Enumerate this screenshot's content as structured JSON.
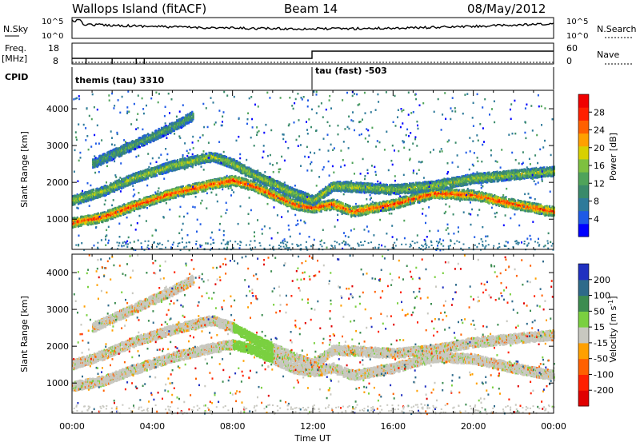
{
  "header": {
    "station": "Wallops Island (fitACF)",
    "beam": "Beam 14",
    "date": "08/May/2012"
  },
  "summary_panels": {
    "nsky": {
      "label": "N.Sky",
      "ticks": [
        "10^5",
        "10^0"
      ]
    },
    "nsearch": {
      "label": "N.Search",
      "ticks": [
        "10^5",
        "10^0"
      ]
    },
    "freq": {
      "label_line1": "Freq.",
      "label_line2": "[MHz]",
      "ticks": [
        "18",
        "8"
      ]
    },
    "nave": {
      "label": "Nave",
      "ticks": [
        "60",
        "0"
      ]
    },
    "cpid": {
      "label": "CPID"
    },
    "modes": [
      {
        "name": "themis (tau) 3310",
        "start_hour": 0
      },
      {
        "name": "tau (fast) -503",
        "start_hour": 12
      }
    ]
  },
  "chart_data": [
    {
      "type": "heatmap",
      "panel": "power",
      "ylabel": "Slant Range [km]",
      "xlabel": "Time UT",
      "x_ticks": [
        "00:00",
        "04:00",
        "08:00",
        "12:00",
        "16:00",
        "20:00",
        "00:00"
      ],
      "x_range_hours": [
        0,
        24
      ],
      "y_ticks": [
        1000,
        2000,
        3000,
        4000
      ],
      "ylim": [
        180,
        4500
      ],
      "colorbar": {
        "label": "Power [dB]",
        "ticks": [
          4,
          8,
          12,
          16,
          20,
          24,
          28
        ],
        "colors": [
          "#0000ff",
          "#1e5ae6",
          "#2e7a9a",
          "#3a8a6a",
          "#4fa35a",
          "#7ec040",
          "#d8d000",
          "#ffa000",
          "#ff6000",
          "#ff2000",
          "#f00000"
        ]
      },
      "bands": [
        {
          "points": [
            [
              0,
              900
            ],
            [
              1.5,
              1050
            ],
            [
              3,
              1350
            ],
            [
              5,
              1700
            ],
            [
              7,
              1950
            ],
            [
              8,
              2050
            ],
            [
              9,
              1900
            ],
            [
              10,
              1650
            ],
            [
              11,
              1400
            ],
            [
              12,
              1300
            ],
            [
              13,
              1400
            ],
            [
              14,
              1200
            ],
            [
              16,
              1400
            ],
            [
              18,
              1700
            ],
            [
              20,
              1650
            ],
            [
              22,
              1400
            ],
            [
              24,
              1200
            ]
          ],
          "level": 0.9
        },
        {
          "points": [
            [
              0,
              1500
            ],
            [
              1.5,
              1750
            ],
            [
              3,
              2100
            ],
            [
              5,
              2450
            ],
            [
              7,
              2700
            ],
            [
              8,
              2500
            ],
            [
              9,
              2200
            ],
            [
              10,
              1950
            ],
            [
              11,
              1700
            ],
            [
              12,
              1500
            ],
            [
              13,
              1900
            ],
            [
              16,
              1800
            ],
            [
              18,
              1900
            ],
            [
              20,
              2100
            ],
            [
              22,
              2200
            ],
            [
              24,
              2300
            ]
          ],
          "level": 0.55
        },
        {
          "points": [
            [
              1,
              2500
            ],
            [
              3,
              3000
            ],
            [
              5,
              3500
            ],
            [
              6,
              3800
            ]
          ],
          "level": 0.4
        }
      ]
    },
    {
      "type": "heatmap",
      "panel": "velocity",
      "ylabel": "Slant Range [km]",
      "xlabel": "Time UT",
      "x_ticks": [
        "00:00",
        "04:00",
        "08:00",
        "12:00",
        "16:00",
        "20:00",
        "00:00"
      ],
      "x_range_hours": [
        0,
        24
      ],
      "y_ticks": [
        1000,
        2000,
        3000,
        4000
      ],
      "ylim": [
        180,
        4500
      ],
      "colorbar": {
        "label": "Velocity [m s^-1]",
        "ticks": [
          200,
          100,
          50,
          15,
          -15,
          -50,
          -100,
          -200
        ],
        "colors": [
          "#2030c0",
          "#2e6a8a",
          "#3c8c50",
          "#7ad040",
          "#c8c8c0",
          "#ffa000",
          "#ff6000",
          "#ff2000",
          "#e00000"
        ]
      },
      "bands": [
        {
          "points": [
            [
              0,
              900
            ],
            [
              1.5,
              1050
            ],
            [
              3,
              1350
            ],
            [
              5,
              1700
            ],
            [
              7,
              1950
            ],
            [
              8,
              2050
            ],
            [
              9,
              1900
            ],
            [
              10,
              1650
            ],
            [
              11,
              1400
            ],
            [
              12,
              1300
            ],
            [
              13,
              1400
            ],
            [
              14,
              1200
            ],
            [
              16,
              1400
            ],
            [
              18,
              1700
            ],
            [
              20,
              1650
            ],
            [
              22,
              1400
            ],
            [
              24,
              1200
            ]
          ],
          "level": 0.5
        },
        {
          "points": [
            [
              0,
              1500
            ],
            [
              1.5,
              1750
            ],
            [
              3,
              2100
            ],
            [
              5,
              2450
            ],
            [
              7,
              2700
            ],
            [
              8,
              2500
            ],
            [
              9,
              2200
            ],
            [
              10,
              1950
            ],
            [
              11,
              1700
            ],
            [
              12,
              1500
            ],
            [
              13,
              1900
            ],
            [
              16,
              1800
            ],
            [
              18,
              1900
            ],
            [
              20,
              2100
            ],
            [
              22,
              2200
            ],
            [
              24,
              2300
            ]
          ],
          "level": 0.5
        },
        {
          "points": [
            [
              1,
              2500
            ],
            [
              3,
              3000
            ],
            [
              5,
              3500
            ],
            [
              6,
              3800
            ]
          ],
          "level": 0.5
        }
      ]
    }
  ]
}
